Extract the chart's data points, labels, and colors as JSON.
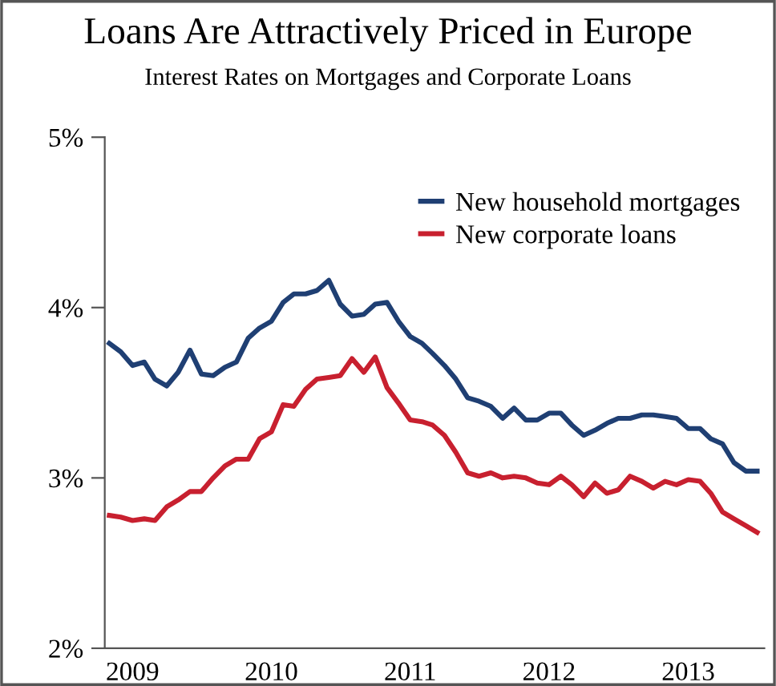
{
  "chart_data": {
    "type": "line",
    "title": "Loans Are Attractively Priced in Europe",
    "subtitle": "Interest Rates on Mortgages and Corporate Loans",
    "x": [
      "2008-11",
      "2008-12",
      "2009-01",
      "2009-02",
      "2009-03",
      "2009-04",
      "2009-05",
      "2009-06",
      "2009-07",
      "2009-08",
      "2009-09",
      "2009-10",
      "2009-11",
      "2009-12",
      "2010-01",
      "2010-02",
      "2010-03",
      "2010-04",
      "2010-05",
      "2010-06",
      "2010-07",
      "2010-08",
      "2010-09",
      "2010-10",
      "2010-11",
      "2010-12",
      "2011-01",
      "2011-02",
      "2011-03",
      "2011-04",
      "2011-05",
      "2011-06",
      "2011-07",
      "2011-08",
      "2011-09",
      "2011-10",
      "2011-11",
      "2011-12",
      "2012-01",
      "2012-02",
      "2012-03",
      "2012-04",
      "2012-05",
      "2012-06",
      "2012-07",
      "2012-08",
      "2012-09",
      "2012-10",
      "2012-11",
      "2012-12",
      "2013-01",
      "2013-02",
      "2013-03",
      "2013-04",
      "2013-05",
      "2013-06",
      "2013-07"
    ],
    "series": [
      {
        "name": "New household mortgages",
        "color": "#1f3f73",
        "values": [
          3.79,
          3.74,
          3.66,
          3.68,
          3.58,
          3.54,
          3.62,
          3.75,
          3.61,
          3.6,
          3.65,
          3.68,
          3.82,
          3.88,
          3.92,
          4.03,
          4.08,
          4.08,
          4.1,
          4.16,
          4.02,
          3.95,
          3.96,
          4.02,
          4.03,
          3.92,
          3.83,
          3.79,
          3.73,
          3.66,
          3.58,
          3.47,
          3.45,
          3.42,
          3.35,
          3.41,
          3.34,
          3.34,
          3.38,
          3.38,
          3.31,
          3.25,
          3.28,
          3.32,
          3.35,
          3.35,
          3.37,
          3.37,
          3.36,
          3.35,
          3.29,
          3.29,
          3.23,
          3.2,
          3.09,
          3.04,
          3.04
        ]
      },
      {
        "name": "New corporate loans",
        "color": "#c8202f",
        "values": [
          2.78,
          2.77,
          2.75,
          2.76,
          2.75,
          2.83,
          2.87,
          2.92,
          2.92,
          3.0,
          3.07,
          3.11,
          3.11,
          3.23,
          3.27,
          3.43,
          3.42,
          3.52,
          3.58,
          3.59,
          3.6,
          3.7,
          3.62,
          3.71,
          3.53,
          3.44,
          3.34,
          3.33,
          3.31,
          3.25,
          3.15,
          3.03,
          3.01,
          3.03,
          3.0,
          3.01,
          3.0,
          2.97,
          2.96,
          3.01,
          2.96,
          2.89,
          2.97,
          2.91,
          2.93,
          3.01,
          2.98,
          2.94,
          2.98,
          2.96,
          2.99,
          2.98,
          2.91,
          2.8,
          2.76,
          2.72,
          2.68
        ]
      }
    ],
    "xlim": [
      "2008-10-20",
      "2013-07-20"
    ],
    "xticks": [
      {
        "value": "2009-01",
        "label": "2009"
      },
      {
        "value": "2010-01",
        "label": "2010"
      },
      {
        "value": "2011-01",
        "label": "2011"
      },
      {
        "value": "2012-01",
        "label": "2012"
      },
      {
        "value": "2013-01",
        "label": "2013"
      }
    ],
    "ylim": [
      2,
      5
    ],
    "yticks": [
      {
        "value": 2,
        "label": "2%"
      },
      {
        "value": 3,
        "label": "3%"
      },
      {
        "value": 4,
        "label": "4%"
      },
      {
        "value": 5,
        "label": "5%"
      }
    ],
    "legend": "top right",
    "grid": false
  }
}
